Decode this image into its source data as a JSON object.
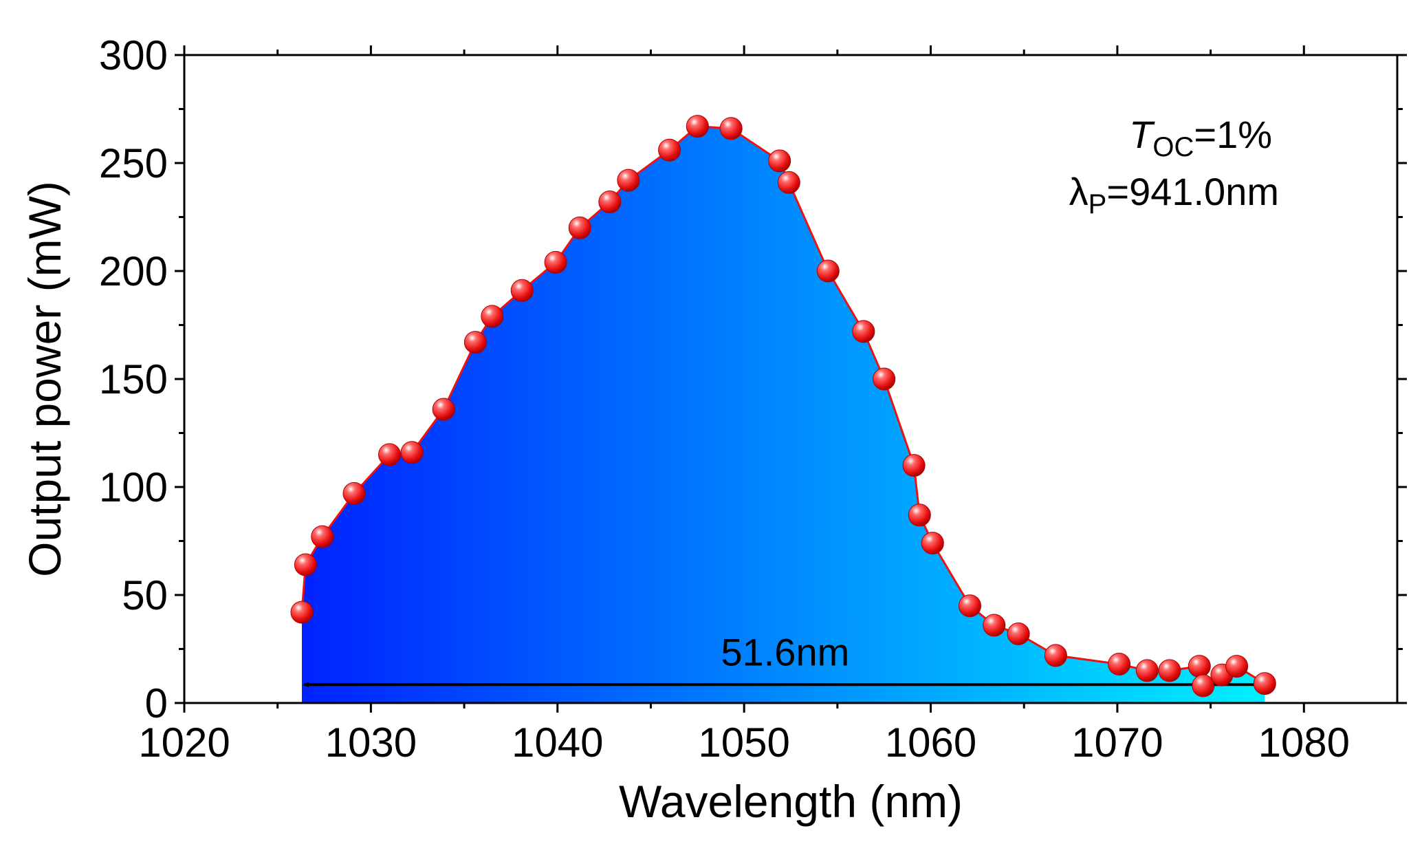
{
  "chart_data": {
    "type": "line",
    "title": "",
    "xlabel": "Wavelength (nm)",
    "ylabel": "Output power (mW)",
    "xlim": [
      1020,
      1085
    ],
    "ylim": [
      0,
      300
    ],
    "xticks": [
      1020,
      1030,
      1040,
      1050,
      1060,
      1070,
      1080
    ],
    "yticks": [
      0,
      50,
      100,
      150,
      200,
      250,
      300
    ],
    "grid": false,
    "fill": {
      "gradient_start": "#0022ff",
      "gradient_end": "#00f0ff"
    },
    "line_color": "#ee1111",
    "marker_color": "#ee1111",
    "series": [
      {
        "name": "Output power",
        "x": [
          1026.3,
          1026.5,
          1027.4,
          1029.1,
          1031.0,
          1032.2,
          1033.9,
          1035.6,
          1036.5,
          1038.1,
          1039.9,
          1041.2,
          1042.8,
          1043.8,
          1046.0,
          1047.5,
          1049.3,
          1051.9,
          1052.4,
          1054.5,
          1056.4,
          1057.5,
          1059.1,
          1059.4,
          1060.1,
          1062.1,
          1063.4,
          1064.7,
          1066.7,
          1070.1,
          1071.6,
          1072.8,
          1074.4,
          1074.6,
          1075.6,
          1076.4,
          1077.9
        ],
        "y": [
          42,
          64,
          77,
          97,
          115,
          116,
          136,
          167,
          179,
          191,
          204,
          220,
          232,
          242,
          256,
          267,
          266,
          251,
          241,
          200,
          172,
          150,
          110,
          87,
          74,
          45,
          36,
          32,
          22,
          18,
          15,
          15,
          17,
          8,
          13,
          17,
          9
        ]
      }
    ],
    "annotations": {
      "toc_symbol": "T",
      "toc_sub": "OC",
      "toc_value": "=1%",
      "lambda_symbol": "λ",
      "lambda_sub": "P",
      "lambda_value": "=941.0nm",
      "span_label": "51.6nm",
      "span_start": 1026.4,
      "span_end": 1078.0,
      "span_y": 8.5
    }
  }
}
